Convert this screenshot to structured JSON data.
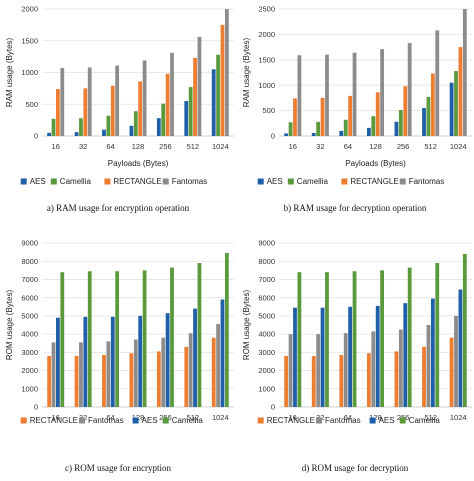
{
  "chart_data": [
    {
      "type": "bar",
      "caption": "a)   RAM usage for encryption operation",
      "xlabel": "Payloads (Bytes)",
      "ylabel": "RAM usage (Bytes)",
      "ylim": [
        0,
        2000
      ],
      "yticks": [
        "0",
        "500",
        "1000",
        "1500",
        "2000"
      ],
      "categories": [
        "16",
        "32",
        "64",
        "128",
        "256",
        "512",
        "1024"
      ],
      "legend_position": "bottom",
      "series": [
        {
          "name": "AES",
          "color": "#1f5fa8",
          "values": [
            50,
            60,
            100,
            160,
            280,
            550,
            1050
          ]
        },
        {
          "name": "Camellia",
          "color": "#5a9a3c",
          "values": [
            270,
            280,
            320,
            390,
            510,
            770,
            1280
          ]
        },
        {
          "name": "RECTANGLE",
          "color": "#ed7d31",
          "values": [
            740,
            750,
            790,
            860,
            980,
            1230,
            1750
          ]
        },
        {
          "name": "Fantomas",
          "color": "#8c8c8c",
          "values": [
            1070,
            1080,
            1110,
            1190,
            1310,
            1560,
            2070
          ]
        }
      ]
    },
    {
      "type": "bar",
      "caption": "b)   RAM usage for decryption operation",
      "xlabel": "Payloads (Bytes)",
      "ylabel": "RAM usage (Bytes)",
      "ylim": [
        0,
        2500
      ],
      "yticks": [
        "0",
        "500",
        "1000",
        "1500",
        "2000",
        "2500"
      ],
      "categories": [
        "16",
        "32",
        "64",
        "128",
        "256",
        "512",
        "1024"
      ],
      "legend_position": "bottom",
      "series": [
        {
          "name": "AES",
          "color": "#1f5fa8",
          "values": [
            50,
            60,
            100,
            160,
            280,
            550,
            1050
          ]
        },
        {
          "name": "Camellia",
          "color": "#5a9a3c",
          "values": [
            270,
            280,
            320,
            390,
            510,
            770,
            1280
          ]
        },
        {
          "name": "RECTANGLE",
          "color": "#ed7d31",
          "values": [
            740,
            750,
            790,
            860,
            980,
            1230,
            1750
          ]
        },
        {
          "name": "Fantomas",
          "color": "#8c8c8c",
          "values": [
            1590,
            1600,
            1640,
            1710,
            1830,
            2080,
            2600
          ]
        }
      ]
    },
    {
      "type": "bar",
      "caption": "c) ROM usage for encryption",
      "xlabel": "",
      "ylabel": "ROM usage (Bytes)",
      "ylim": [
        0,
        9000
      ],
      "yticks": [
        "0",
        "1000",
        "2000",
        "3000",
        "4000",
        "5000",
        "6000",
        "7000",
        "8000",
        "9000"
      ],
      "categories": [
        "16",
        "32",
        "64",
        "128",
        "256",
        "512",
        "1024"
      ],
      "legend_position": "bottom",
      "series": [
        {
          "name": "RECTANGLE",
          "color": "#ed7d31",
          "values": [
            2800,
            2800,
            2850,
            2950,
            3050,
            3300,
            3800
          ]
        },
        {
          "name": "Fantomas",
          "color": "#8c8c8c",
          "values": [
            3550,
            3550,
            3600,
            3700,
            3800,
            4050,
            4550
          ]
        },
        {
          "name": "AES",
          "color": "#1f5fa8",
          "values": [
            4900,
            4950,
            4950,
            5000,
            5150,
            5400,
            5900
          ]
        },
        {
          "name": "Camellia",
          "color": "#5a9a3c",
          "values": [
            7400,
            7450,
            7450,
            7500,
            7650,
            7900,
            8450
          ]
        }
      ]
    },
    {
      "type": "bar",
      "caption": "d) ROM usage for decryption",
      "xlabel": "",
      "ylabel": "ROM usage (Bytes)",
      "ylim": [
        0,
        9000
      ],
      "yticks": [
        "0",
        "1000",
        "2000",
        "3000",
        "4000",
        "5000",
        "6000",
        "7000",
        "8000",
        "9000"
      ],
      "categories": [
        "16",
        "32",
        "64",
        "128",
        "256",
        "512",
        "1024"
      ],
      "legend_position": "bottom",
      "series": [
        {
          "name": "RECTANGLE",
          "color": "#ed7d31",
          "values": [
            2800,
            2800,
            2850,
            2950,
            3050,
            3300,
            3800
          ]
        },
        {
          "name": "Fantomas",
          "color": "#8c8c8c",
          "values": [
            4000,
            4000,
            4050,
            4150,
            4250,
            4500,
            5000
          ]
        },
        {
          "name": "AES",
          "color": "#1f5fa8",
          "values": [
            5450,
            5450,
            5500,
            5550,
            5700,
            5950,
            6450
          ]
        },
        {
          "name": "Camellia",
          "color": "#5a9a3c",
          "values": [
            7400,
            7400,
            7450,
            7500,
            7650,
            7900,
            8400
          ]
        }
      ]
    }
  ]
}
